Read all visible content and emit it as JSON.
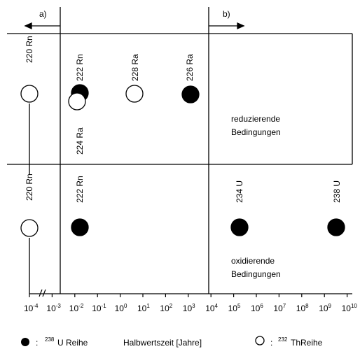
{
  "region_labels": {
    "left": "a)",
    "right": "b)"
  },
  "conditions": {
    "upper": [
      "reduzierende",
      "Bedingungen"
    ],
    "lower": [
      "oxidierende",
      "Bedingungen"
    ]
  },
  "axis": {
    "title": "Halbwertszeit [Jahre]",
    "ticks": [
      {
        "base": "10",
        "exp": "-4"
      },
      {
        "base": "10",
        "exp": "-3"
      },
      {
        "base": "10",
        "exp": "-2"
      },
      {
        "base": "10",
        "exp": "-1"
      },
      {
        "base": "10",
        "exp": "0"
      },
      {
        "base": "10",
        "exp": "1"
      },
      {
        "base": "10",
        "exp": "2"
      },
      {
        "base": "10",
        "exp": "3"
      },
      {
        "base": "10",
        "exp": "4"
      },
      {
        "base": "10",
        "exp": "5"
      },
      {
        "base": "10",
        "exp": "6"
      },
      {
        "base": "10",
        "exp": "7"
      },
      {
        "base": "10",
        "exp": "8"
      },
      {
        "base": "10",
        "exp": "9"
      },
      {
        "base": "10",
        "exp": "10"
      }
    ]
  },
  "upper_isotopes": [
    {
      "name": "220 Rn",
      "series": "232Th",
      "log_half_life": -4
    },
    {
      "name": "222 Rn",
      "series": "238U",
      "log_half_life": -2
    },
    {
      "name": "224 Ra",
      "series": "232Th",
      "log_half_life": -2
    },
    {
      "name": "228 Ra",
      "series": "232Th",
      "log_half_life": 0.8
    },
    {
      "name": "226 Ra",
      "series": "238U",
      "log_half_life": 3.2
    }
  ],
  "lower_isotopes": [
    {
      "name": "220 Rn",
      "series": "232Th",
      "log_half_life": -4
    },
    {
      "name": "222 Rn",
      "series": "238U",
      "log_half_life": -2
    },
    {
      "name": "234 U",
      "series": "238U",
      "log_half_life": 5.4
    },
    {
      "name": "238 U",
      "series": "238U",
      "log_half_life": 9.6
    }
  ],
  "legend": {
    "filled": {
      "sup": "238",
      "text": "U Reihe",
      "prefix": ":"
    },
    "open": {
      "sup": "232",
      "text": "ThReihe",
      "prefix": ":"
    }
  }
}
